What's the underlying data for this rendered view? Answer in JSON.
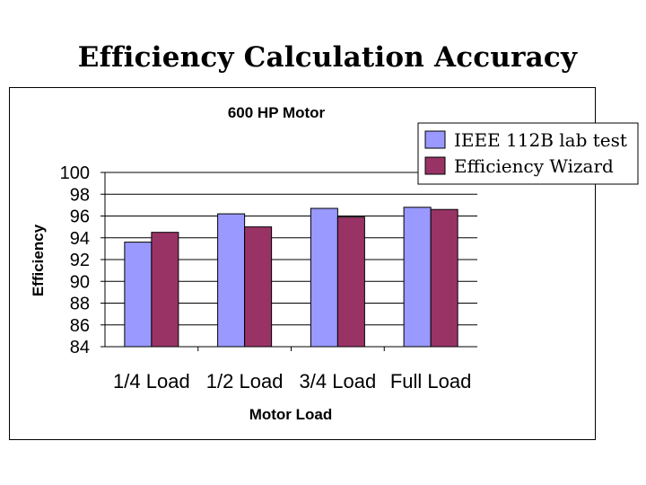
{
  "slide": {
    "title": "Efficiency Calculation Accuracy"
  },
  "colors": {
    "series1": "#9999ff",
    "series2": "#993366",
    "gridline": "#000000"
  },
  "chart_data": {
    "type": "bar",
    "title": "600 HP Motor",
    "xlabel": "Motor Load",
    "ylabel": "Efficiency",
    "categories": [
      "1/4 Load",
      "1/2 Load",
      "3/4 Load",
      "Full Load"
    ],
    "series": [
      {
        "name": "IEEE 112B lab test",
        "values": [
          93.6,
          96.2,
          96.7,
          96.8
        ]
      },
      {
        "name": "Efficiency Wizard",
        "values": [
          94.5,
          95.0,
          95.9,
          96.6
        ]
      }
    ],
    "ylim": [
      84,
      100
    ],
    "yticks": [
      "84",
      "86",
      "88",
      "90",
      "92",
      "94",
      "96",
      "98",
      "100"
    ],
    "grid": true,
    "legend_position": "top-right"
  }
}
